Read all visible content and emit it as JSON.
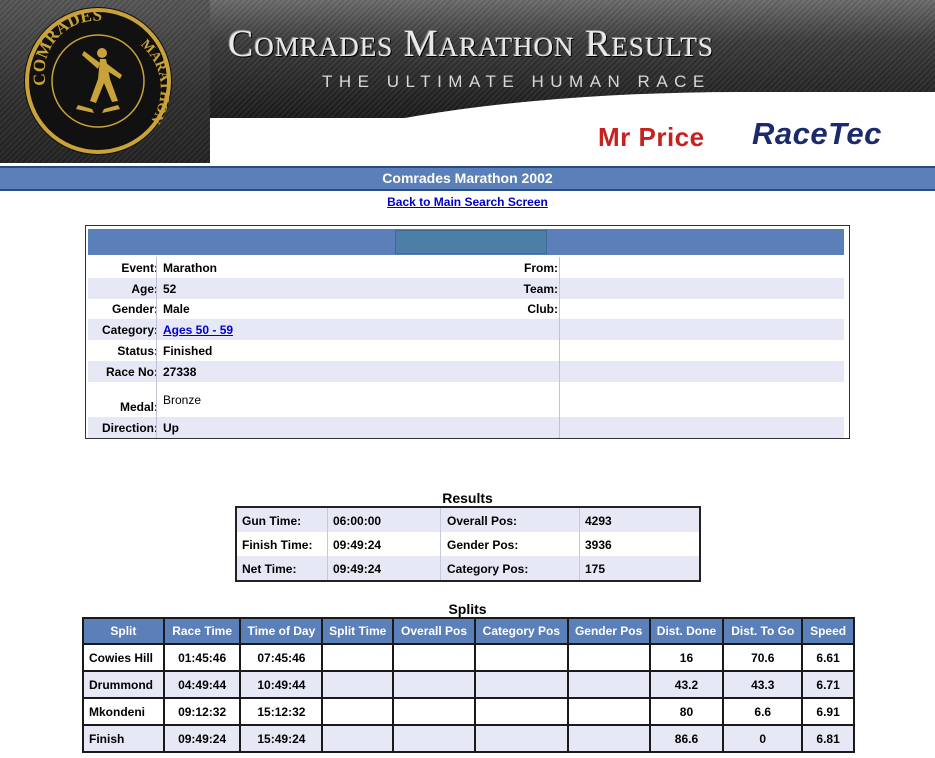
{
  "banner": {
    "title": "Comrades Marathon Results",
    "subtitle": "THE ULTIMATE HUMAN RACE",
    "logo_text_top": "COMRADES",
    "logo_text_right": "MARATHON",
    "sponsor_1": "Mr Price",
    "sponsor_2": "RaceTec",
    "colors": {
      "sponsor_1": "#c8201f",
      "sponsor_2": "#1c2a6b",
      "logo_gold": "#c9a23a"
    }
  },
  "page_title": "Comrades Marathon 2002",
  "back_link": "Back to Main Search Screen",
  "details": {
    "rows": [
      {
        "label": "Event:",
        "value": "Marathon",
        "label2": "From:"
      },
      {
        "label": "Age:",
        "value": "52",
        "label2": "Team:"
      },
      {
        "label": "Gender:",
        "value": "Male",
        "label2": "Club:"
      },
      {
        "label": "Category:",
        "value": "Ages 50 - 59",
        "label2": ""
      },
      {
        "label": "Status:",
        "value": "Finished",
        "label2": ""
      },
      {
        "label": "Race No:",
        "value": "27338",
        "label2": ""
      },
      {
        "label": "Medal:",
        "value": "Bronze",
        "label2": ""
      },
      {
        "label": "Direction:",
        "value": "Up",
        "label2": ""
      }
    ]
  },
  "results": {
    "title": "Results",
    "rows": [
      {
        "k1": "Gun Time:",
        "v1": "06:00:00",
        "k2": "Overall Pos:",
        "v2": "4293"
      },
      {
        "k1": "Finish Time:",
        "v1": "09:49:24",
        "k2": "Gender Pos:",
        "v2": "3936"
      },
      {
        "k1": "Net Time:",
        "v1": "09:49:24",
        "k2": "Category Pos:",
        "v2": "175"
      }
    ]
  },
  "splits": {
    "title": "Splits",
    "headers": [
      "Split",
      "Race Time",
      "Time of Day",
      "Split Time",
      "Overall Pos",
      "Category Pos",
      "Gender Pos",
      "Dist. Done",
      "Dist. To Go",
      "Speed"
    ],
    "rows": [
      [
        "Cowies Hill",
        "01:45:46",
        "07:45:46",
        "",
        "",
        "",
        "",
        "16",
        "70.6",
        "6.61"
      ],
      [
        "Drummond",
        "04:49:44",
        "10:49:44",
        "",
        "",
        "",
        "",
        "43.2",
        "43.3",
        "6.71"
      ],
      [
        "Mkondeni",
        "09:12:32",
        "15:12:32",
        "",
        "",
        "",
        "",
        "80",
        "6.6",
        "6.91"
      ],
      [
        "Finish",
        "09:49:24",
        "15:49:24",
        "",
        "",
        "",
        "",
        "86.6",
        "0",
        "6.81"
      ]
    ]
  },
  "theme": {
    "header_blue": "#5b7fb8",
    "row_alt": "#e6e8f6",
    "link": "#0000cc"
  }
}
